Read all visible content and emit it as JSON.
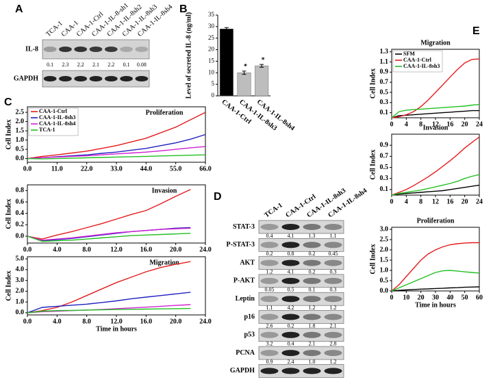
{
  "panels": [
    "A",
    "B",
    "C",
    "D",
    "E"
  ],
  "blot_a": {
    "lanes": [
      "TCA-1",
      "CAA-1",
      "CAA-1-Ctrl",
      "CAA-1-IL-8-sh1",
      "CAA-1-IL-8sh2",
      "CAA-1-IL-8sh3",
      "CAA-1-IL-8sh4"
    ],
    "rows": [
      {
        "label": "IL-8",
        "quant": [
          "0.1",
          "2.3",
          "2.2",
          "2.1",
          "2.2",
          "0.1",
          "0.08"
        ]
      },
      {
        "label": "GAPDH"
      }
    ]
  },
  "blot_d": {
    "lanes": [
      "TCA-1",
      "CAA-1-Ctrl",
      "CAA-1-IL-8sh3",
      "CAA-1-IL-8sh4"
    ],
    "rows": [
      {
        "label": "STAT-3",
        "quant": [
          "0.4",
          "4.1",
          "1.3",
          "1.1"
        ]
      },
      {
        "label": "P-STAT-3",
        "quant": [
          "0.2",
          "0.8",
          "0.2",
          "0.45"
        ]
      },
      {
        "label": "AKT",
        "quant": [
          "1.2",
          "4.1",
          "0.2",
          "0.3"
        ]
      },
      {
        "label": "P-AKT",
        "quant": [
          "0.05",
          "0.5",
          "0.1",
          "0.3"
        ]
      },
      {
        "label": "Leptin",
        "quant": [
          "1.1",
          "4.2",
          "1.2",
          "1.2"
        ]
      },
      {
        "label": "p16",
        "quant": [
          "2.6",
          "0.2",
          "1.8",
          "2.1"
        ]
      },
      {
        "label": "p53",
        "quant": [
          "3.2",
          "0.4",
          "2.1",
          "2.8"
        ]
      },
      {
        "label": "PCNA",
        "quant": [
          "0.9",
          "2.4",
          "1.0",
          "1.2"
        ]
      },
      {
        "label": "GAPDH"
      }
    ]
  },
  "chart_data": [
    {
      "type": "bar",
      "ylabel": "Level of secreted IL-8 (ng/ml)",
      "categories": [
        "CAA-1-Ctrl",
        "CAA-1-IL-8sh3",
        "CAA-1-IL-8sh4"
      ],
      "values": [
        29,
        10,
        13
      ],
      "errors": [
        0.6,
        0.7,
        0.6
      ],
      "colors": [
        "#000000",
        "#bdbdbd",
        "#bdbdbd"
      ],
      "ylim": [
        0,
        35
      ],
      "yticks": [
        0,
        5,
        10,
        15,
        20,
        25,
        30,
        35
      ],
      "annotations": [
        {
          "text": "*",
          "category": "CAA-1-IL-8sh3"
        },
        {
          "text": "*",
          "category": "CAA-1-IL-8sh4"
        }
      ]
    },
    {
      "type": "line",
      "title": "Proliferation",
      "ylabel": "Cell Index",
      "legend": "upper left",
      "x": [
        0,
        5.5,
        11,
        16.5,
        22,
        27.5,
        33,
        38.5,
        44,
        49.5,
        55,
        60.5,
        66
      ],
      "xlim": [
        0,
        66
      ],
      "xticks": [
        {
          "value": 0,
          "label": "0.0"
        },
        {
          "value": 11,
          "label": "11.0"
        },
        {
          "value": 22,
          "label": "22.0"
        },
        {
          "value": 33,
          "label": "33.0"
        },
        {
          "value": 44,
          "label": "44.0"
        },
        {
          "value": 55,
          "label": "55.0"
        },
        {
          "value": 66,
          "label": "66.0"
        }
      ],
      "ylim": [
        -0.2,
        2.8
      ],
      "yticks": [
        {
          "value": 0,
          "label": "0.0"
        },
        0.5,
        {
          "value": 1,
          "label": "1.0"
        },
        1.5,
        {
          "value": 2,
          "label": "2.0"
        },
        2.5
      ],
      "series": [
        {
          "name": "CAA-1-Ctrl",
          "color": "#e41a1c",
          "values": [
            0,
            0.12,
            0.2,
            0.3,
            0.4,
            0.55,
            0.7,
            0.9,
            1.1,
            1.4,
            1.7,
            2.1,
            2.5
          ]
        },
        {
          "name": "CAA-1-IL-8sh3",
          "color": "#2020c0",
          "values": [
            0,
            0.05,
            0.1,
            0.15,
            0.2,
            0.28,
            0.35,
            0.45,
            0.55,
            0.7,
            0.85,
            1.05,
            1.3
          ]
        },
        {
          "name": "CAA-1-IL-8sh4",
          "color": "#d020d0",
          "values": [
            0,
            0.05,
            0.08,
            0.12,
            0.15,
            0.2,
            0.25,
            0.3,
            0.35,
            0.42,
            0.5,
            0.58,
            0.65
          ]
        },
        {
          "name": "TCA-1",
          "color": "#20c020",
          "values": [
            0,
            -0.02,
            0,
            0.02,
            0.04,
            0.06,
            0.08,
            0.1,
            0.12,
            0.14,
            0.16,
            0.18,
            0.2
          ]
        }
      ]
    },
    {
      "type": "line",
      "title": "Invasion",
      "ylabel": "Cell Index",
      "x": [
        0,
        2,
        4,
        6,
        8,
        10,
        12,
        14,
        16,
        18,
        20,
        22
      ],
      "xlim": [
        0,
        24
      ],
      "xticks": [
        {
          "value": 0,
          "label": "0.0"
        },
        {
          "value": 4,
          "label": "4.0"
        },
        {
          "value": 8,
          "label": "8.0"
        },
        {
          "value": 12,
          "label": "12.0"
        },
        {
          "value": 16,
          "label": "16.0"
        },
        {
          "value": 20,
          "label": "20.0"
        },
        {
          "value": 24,
          "label": "24.0"
        }
      ],
      "ylim": [
        -0.12,
        0.9
      ],
      "yticks": [
        {
          "value": 0,
          "label": "0.0"
        },
        0.2,
        0.4,
        0.6,
        0.8
      ],
      "series": [
        {
          "color": "#e41a1c",
          "values": [
            0,
            -0.05,
            0.02,
            0.08,
            0.15,
            0.22,
            0.3,
            0.38,
            0.45,
            0.57,
            0.7,
            0.82
          ]
        },
        {
          "color": "#2020c0",
          "values": [
            0,
            -0.08,
            -0.06,
            -0.04,
            -0.01,
            0.02,
            0.05,
            0.08,
            0.1,
            0.12,
            0.14,
            0.15
          ]
        },
        {
          "color": "#d020d0",
          "values": [
            0,
            -0.07,
            -0.05,
            -0.03,
            0,
            0.03,
            0.06,
            0.08,
            0.1,
            0.12,
            0.13,
            0.14
          ]
        },
        {
          "color": "#20c020",
          "values": [
            0,
            -0.09,
            -0.08,
            -0.07,
            -0.05,
            -0.03,
            -0.01,
            0.01,
            0.02,
            0.03,
            0.04,
            0.05
          ]
        }
      ]
    },
    {
      "type": "line",
      "title": "Migration",
      "ylabel": "Cell Index",
      "xlabel": "Time in hours",
      "x": [
        0,
        2,
        4,
        6,
        8,
        10,
        12,
        14,
        16,
        18,
        20,
        22
      ],
      "xlim": [
        0,
        24
      ],
      "xticks": [
        {
          "value": 0,
          "label": "0.0"
        },
        {
          "value": 4,
          "label": "4.0"
        },
        {
          "value": 8,
          "label": "8.0"
        },
        {
          "value": 12,
          "label": "12.0"
        },
        {
          "value": 16,
          "label": "16.0"
        },
        {
          "value": 20,
          "label": "20.0"
        },
        {
          "value": 24,
          "label": "24.0"
        }
      ],
      "ylim": [
        -0.2,
        5.2
      ],
      "yticks": [
        {
          "value": 0,
          "label": "0.0"
        },
        {
          "value": 1,
          "label": "1.0"
        },
        {
          "value": 2,
          "label": "2.0"
        },
        {
          "value": 3,
          "label": "3.0"
        },
        {
          "value": 4,
          "label": "4.0"
        },
        {
          "value": 5,
          "label": "5.0"
        }
      ],
      "series": [
        {
          "color": "#e41a1c",
          "values": [
            0,
            0.2,
            0.5,
            1.0,
            1.6,
            2.2,
            2.8,
            3.3,
            3.8,
            4.2,
            4.5,
            4.75
          ]
        },
        {
          "color": "#2020c0",
          "values": [
            0,
            0.5,
            0.6,
            0.7,
            0.8,
            0.95,
            1.1,
            1.3,
            1.45,
            1.6,
            1.75,
            1.9
          ]
        },
        {
          "color": "#d020d0",
          "values": [
            0,
            0.1,
            0.15,
            0.2,
            0.25,
            0.3,
            0.38,
            0.45,
            0.52,
            0.6,
            0.68,
            0.75
          ]
        },
        {
          "color": "#20c020",
          "values": [
            0,
            0.15,
            0.2,
            0.22,
            0.25,
            0.27,
            0.3,
            0.32,
            0.34,
            0.36,
            0.38,
            0.4
          ]
        }
      ]
    },
    {
      "type": "line",
      "title": "Migration",
      "ylabel": "Cell Index",
      "legend": "upper left",
      "x": [
        0,
        2,
        4,
        6,
        8,
        10,
        12,
        14,
        16,
        18,
        20,
        22,
        24
      ],
      "xlim": [
        0,
        24
      ],
      "xticks": [
        0,
        4,
        8,
        12,
        16,
        20,
        24
      ],
      "ylim": [
        0,
        1.35
      ],
      "yticks": [
        0.1,
        0.3,
        0.5,
        0.7,
        0.9,
        1.1,
        1.3
      ],
      "series": [
        {
          "name": "SFM",
          "color": "#000000",
          "values": [
            0,
            0.04,
            0.05,
            0.06,
            0.07,
            0.08,
            0.09,
            0.1,
            0.11,
            0.12,
            0.13,
            0.14,
            0.14
          ]
        },
        {
          "name": "CAA-1-Ctrl",
          "color": "#e41a1c",
          "values": [
            0,
            0.02,
            0.06,
            0.12,
            0.22,
            0.35,
            0.5,
            0.65,
            0.8,
            0.95,
            1.08,
            1.15,
            1.16
          ]
        },
        {
          "name": "CAA-1-IL-8sh3",
          "color": "#20c020",
          "values": [
            0,
            0.12,
            0.15,
            0.16,
            0.17,
            0.18,
            0.19,
            0.2,
            0.21,
            0.22,
            0.23,
            0.25,
            0.26
          ]
        }
      ]
    },
    {
      "type": "line",
      "title": "Invasion",
      "ylabel": "Cell Index",
      "x": [
        0,
        2,
        4,
        6,
        8,
        10,
        12,
        14,
        16,
        18,
        20,
        22,
        24
      ],
      "xlim": [
        0,
        24
      ],
      "xticks": [
        0,
        4,
        8,
        12,
        16,
        20,
        24
      ],
      "ylim": [
        0,
        1.1
      ],
      "yticks": [
        0.1,
        0.3,
        0.5,
        0.7,
        0.9
      ],
      "series": [
        {
          "color": "#000000",
          "values": [
            0,
            0.02,
            0.03,
            0.04,
            0.05,
            0.06,
            0.07,
            0.08,
            0.1,
            0.12,
            0.14,
            0.16,
            0.18
          ]
        },
        {
          "color": "#e41a1c",
          "values": [
            0,
            0.05,
            0.1,
            0.17,
            0.25,
            0.33,
            0.42,
            0.52,
            0.62,
            0.73,
            0.85,
            0.95,
            1.05
          ]
        },
        {
          "color": "#20c020",
          "values": [
            0,
            0.03,
            0.05,
            0.07,
            0.09,
            0.12,
            0.15,
            0.18,
            0.21,
            0.25,
            0.3,
            0.34,
            0.37
          ]
        }
      ]
    },
    {
      "type": "line",
      "title": "Proliferation",
      "ylabel": "Cell Index",
      "xlabel": "Time in hours",
      "x": [
        0,
        5,
        10,
        15,
        20,
        25,
        30,
        35,
        40,
        45,
        50,
        55,
        60
      ],
      "xlim": [
        0,
        60
      ],
      "xticks": [
        0,
        10,
        20,
        30,
        40,
        50,
        60
      ],
      "ylim": [
        0,
        3.1
      ],
      "yticks": [
        {
          "value": 0,
          "label": "0.0"
        },
        0.5,
        {
          "value": 1,
          "label": "1.0"
        },
        1.5,
        {
          "value": 2,
          "label": "2.0"
        },
        2.5,
        {
          "value": 3,
          "label": "3.0"
        }
      ],
      "series": [
        {
          "color": "#000000",
          "values": [
            0,
            0.03,
            0.05,
            0.07,
            0.09,
            0.1,
            0.12,
            0.13,
            0.15,
            0.16,
            0.18,
            0.19,
            0.2
          ]
        },
        {
          "color": "#e41a1c",
          "values": [
            0,
            0.3,
            0.7,
            1.1,
            1.5,
            1.8,
            2.0,
            2.15,
            2.25,
            2.3,
            2.33,
            2.35,
            2.35
          ]
        },
        {
          "color": "#20c020",
          "values": [
            0,
            0.15,
            0.3,
            0.45,
            0.6,
            0.75,
            0.9,
            0.98,
            1.0,
            0.97,
            0.93,
            0.9,
            0.87
          ]
        }
      ]
    }
  ]
}
